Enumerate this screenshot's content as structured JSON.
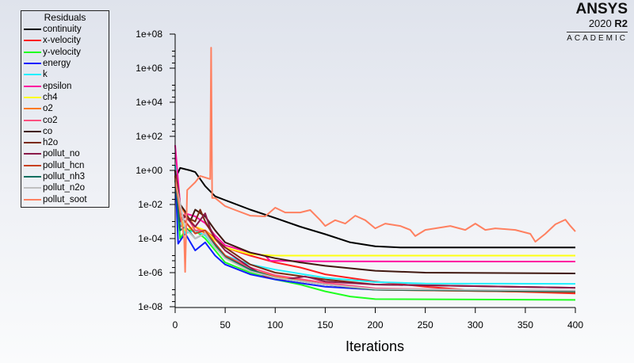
{
  "logo": {
    "brand": "ANSYS",
    "version": "2020",
    "release": "R2",
    "edition": "ACADEMIC"
  },
  "chart_data": {
    "type": "line",
    "title": "",
    "xlabel": "Iterations",
    "ylabel": "",
    "legend_title": "Residuals",
    "legend_position": "top-left",
    "xlim": [
      0,
      400
    ],
    "ylim": [
      1e-08,
      100000000.0
    ],
    "yscale": "log",
    "grid": false,
    "xticks": [
      "0",
      "50",
      "100",
      "150",
      "200",
      "250",
      "300",
      "350",
      "400"
    ],
    "yticks": [
      "1e-08",
      "1e-06",
      "1e-04",
      "1e-02",
      "1e+00",
      "1e+02",
      "1e+04",
      "1e+06",
      "1e+08"
    ],
    "series": [
      {
        "name": "continuity",
        "color": "#000000",
        "points": [
          [
            0,
            0.3
          ],
          [
            5,
            1.4
          ],
          [
            15,
            1.0
          ],
          [
            20,
            0.8
          ],
          [
            30,
            0.12
          ],
          [
            40,
            0.03
          ],
          [
            50,
            0.018
          ],
          [
            75,
            0.005
          ],
          [
            100,
            0.0016
          ],
          [
            125,
            0.0005
          ],
          [
            150,
            0.00018
          ],
          [
            175,
            6e-05
          ],
          [
            200,
            3.5e-05
          ],
          [
            225,
            3e-05
          ],
          [
            400,
            3e-05
          ]
        ]
      },
      {
        "name": "x-velocity",
        "color": "#ff2020",
        "points": [
          [
            0,
            1
          ],
          [
            5,
            0.0005
          ],
          [
            10,
            0.001
          ],
          [
            20,
            0.0002
          ],
          [
            30,
            0.0003
          ],
          [
            40,
            0.0001
          ],
          [
            50,
            3e-05
          ],
          [
            75,
            1e-05
          ],
          [
            100,
            4e-06
          ],
          [
            125,
            2e-06
          ],
          [
            150,
            8e-07
          ],
          [
            200,
            3e-07
          ],
          [
            250,
            1.5e-07
          ],
          [
            300,
            9e-08
          ],
          [
            400,
            6e-08
          ]
        ]
      },
      {
        "name": "y-velocity",
        "color": "#20ff20",
        "points": [
          [
            0,
            0.3
          ],
          [
            5,
            0.0001
          ],
          [
            10,
            0.0003
          ],
          [
            20,
            0.0003
          ],
          [
            30,
            0.0001
          ],
          [
            40,
            2e-05
          ],
          [
            50,
            4e-06
          ],
          [
            75,
            1e-06
          ],
          [
            100,
            4e-07
          ],
          [
            125,
            2e-07
          ],
          [
            150,
            8e-08
          ],
          [
            175,
            4e-08
          ],
          [
            200,
            2.8e-08
          ],
          [
            400,
            2.5e-08
          ]
        ]
      },
      {
        "name": "energy",
        "color": "#1020ff",
        "points": [
          [
            0,
            1
          ],
          [
            3,
            5e-05
          ],
          [
            10,
            0.0002
          ],
          [
            20,
            2e-05
          ],
          [
            30,
            6e-05
          ],
          [
            40,
            1e-05
          ],
          [
            50,
            3e-06
          ],
          [
            75,
            8e-07
          ],
          [
            100,
            4e-07
          ],
          [
            150,
            1.5e-07
          ],
          [
            200,
            1e-07
          ],
          [
            400,
            8e-08
          ]
        ]
      },
      {
        "name": "k",
        "color": "#20f0ff",
        "points": [
          [
            0,
            2
          ],
          [
            5,
            0.001
          ],
          [
            10,
            0.0002
          ],
          [
            20,
            0.0003
          ],
          [
            30,
            0.00015
          ],
          [
            40,
            3e-05
          ],
          [
            50,
            1e-05
          ],
          [
            75,
            3e-06
          ],
          [
            100,
            1.5e-06
          ],
          [
            150,
            5e-07
          ],
          [
            200,
            2.8e-07
          ],
          [
            250,
            2.3e-07
          ],
          [
            400,
            2.2e-07
          ]
        ]
      },
      {
        "name": "epsilon",
        "color": "#ff10a0",
        "points": [
          [
            0,
            30
          ],
          [
            5,
            0.01
          ],
          [
            10,
            0.003
          ],
          [
            20,
            0.002
          ],
          [
            30,
            0.0008
          ],
          [
            40,
            0.00015
          ],
          [
            50,
            4e-05
          ],
          [
            75,
            1.5e-05
          ],
          [
            90,
            1e-05
          ],
          [
            95,
            5e-06
          ],
          [
            150,
            4.6e-06
          ],
          [
            400,
            4.5e-06
          ]
        ]
      },
      {
        "name": "ch4",
        "color": "#ffff10",
        "points": [
          [
            0,
            0.5
          ],
          [
            5,
            0.002
          ],
          [
            10,
            0.0003
          ],
          [
            20,
            0.0005
          ],
          [
            30,
            0.0003
          ],
          [
            40,
            8e-05
          ],
          [
            50,
            3e-05
          ],
          [
            75,
            1.2e-05
          ],
          [
            100,
            1e-05
          ],
          [
            400,
            1e-05
          ]
        ]
      },
      {
        "name": "o2",
        "color": "#ff7a20",
        "points": [
          [
            0,
            0.5
          ],
          [
            5,
            0.01
          ],
          [
            10,
            0.003
          ],
          [
            20,
            0.0005
          ],
          [
            30,
            0.0002
          ],
          [
            40,
            3e-05
          ],
          [
            50,
            8e-06
          ],
          [
            75,
            1.5e-06
          ],
          [
            100,
            6e-07
          ],
          [
            150,
            2e-07
          ],
          [
            200,
            1e-07
          ],
          [
            400,
            7e-08
          ]
        ]
      },
      {
        "name": "co2",
        "color": "#ff5080",
        "points": [
          [
            0,
            1
          ],
          [
            5,
            0.001
          ],
          [
            10,
            0.003
          ],
          [
            20,
            0.0003
          ],
          [
            30,
            0.0003
          ],
          [
            40,
            5e-05
          ],
          [
            50,
            1e-05
          ],
          [
            75,
            2e-06
          ],
          [
            100,
            7e-07
          ],
          [
            150,
            2.5e-07
          ],
          [
            200,
            1.2e-07
          ],
          [
            400,
            8e-08
          ]
        ]
      },
      {
        "name": "co",
        "color": "#401810",
        "points": [
          [
            0,
            1
          ],
          [
            5,
            0.01
          ],
          [
            10,
            0.004
          ],
          [
            15,
            0.001
          ],
          [
            20,
            0.005
          ],
          [
            30,
            0.002
          ],
          [
            40,
            0.0003
          ],
          [
            50,
            6e-05
          ],
          [
            75,
            1.5e-05
          ],
          [
            100,
            7e-06
          ],
          [
            125,
            4e-06
          ],
          [
            150,
            2.5e-06
          ],
          [
            200,
            1.3e-06
          ],
          [
            250,
            1e-06
          ],
          [
            400,
            9e-07
          ]
        ]
      },
      {
        "name": "h2o",
        "color": "#7a2a10",
        "points": [
          [
            0,
            1
          ],
          [
            5,
            0.003
          ],
          [
            10,
            0.002
          ],
          [
            20,
            0.001
          ],
          [
            25,
            0.005
          ],
          [
            30,
            0.001
          ],
          [
            40,
            0.0001
          ],
          [
            50,
            3e-05
          ],
          [
            75,
            3e-06
          ],
          [
            100,
            1e-06
          ],
          [
            150,
            4e-07
          ],
          [
            200,
            2e-07
          ],
          [
            400,
            1.3e-07
          ]
        ]
      },
      {
        "name": "pollut_no",
        "color": "#8b1a4a",
        "points": [
          [
            0,
            0.5
          ],
          [
            5,
            0.001
          ],
          [
            10,
            0.002
          ],
          [
            20,
            0.0005
          ],
          [
            30,
            0.003
          ],
          [
            35,
            0.0004
          ],
          [
            40,
            0.0001
          ],
          [
            50,
            2e-05
          ],
          [
            75,
            2e-06
          ],
          [
            90,
            6e-07
          ],
          [
            110,
            4e-07
          ],
          [
            130,
            6e-07
          ],
          [
            150,
            3e-07
          ],
          [
            200,
            2e-07
          ],
          [
            400,
            1.3e-07
          ]
        ]
      },
      {
        "name": "pollut_hcn",
        "color": "#c84020",
        "points": [
          [
            0,
            0.5
          ],
          [
            5,
            0.002
          ],
          [
            10,
            0.001
          ],
          [
            20,
            0.0002
          ],
          [
            30,
            0.0003
          ],
          [
            40,
            5e-05
          ],
          [
            50,
            1e-05
          ],
          [
            75,
            1.5e-06
          ],
          [
            100,
            5e-07
          ],
          [
            150,
            2e-07
          ],
          [
            200,
            1e-07
          ],
          [
            400,
            7e-08
          ]
        ]
      },
      {
        "name": "pollut_nh3",
        "color": "#107060",
        "points": [
          [
            0,
            0.3
          ],
          [
            5,
            0.0003
          ],
          [
            10,
            0.0005
          ],
          [
            20,
            0.0001
          ],
          [
            30,
            0.0002
          ],
          [
            40,
            4e-05
          ],
          [
            50,
            8e-06
          ],
          [
            75,
            1.5e-06
          ],
          [
            100,
            5e-07
          ],
          [
            150,
            2e-07
          ],
          [
            200,
            1e-07
          ],
          [
            400,
            8e-08
          ]
        ]
      },
      {
        "name": "pollut_n2o",
        "color": "#c0c0c0",
        "points": [
          [
            0,
            0.3
          ],
          [
            10,
            0.0004
          ],
          [
            20,
            0.0001
          ],
          [
            30,
            0.0002
          ],
          [
            40,
            3e-05
          ],
          [
            50,
            7e-06
          ],
          [
            75,
            1.2e-06
          ],
          [
            100,
            5e-07
          ],
          [
            150,
            2e-07
          ],
          [
            200,
            1.1e-07
          ],
          [
            400,
            9e-08
          ]
        ]
      },
      {
        "name": "pollut_soot",
        "color": "#ff8060",
        "points": [
          [
            0,
            0.34
          ],
          [
            9,
            0.0001
          ],
          [
            10,
            1.1e-06
          ],
          [
            12,
            0.07
          ],
          [
            20,
            0.2
          ],
          [
            25,
            0.47
          ],
          [
            35,
            0.31
          ],
          [
            36,
            16000000.0
          ],
          [
            37,
            0.024
          ],
          [
            40,
            0.024
          ],
          [
            50,
            0.008
          ],
          [
            60,
            0.0047
          ],
          [
            75,
            0.0022
          ],
          [
            90,
            0.002
          ],
          [
            100,
            0.0065
          ],
          [
            110,
            0.0034
          ],
          [
            125,
            0.0034
          ],
          [
            135,
            0.0047
          ],
          [
            145,
            0.0012
          ],
          [
            150,
            0.00055
          ],
          [
            160,
            0.0012
          ],
          [
            170,
            0.00076
          ],
          [
            180,
            0.0022
          ],
          [
            190,
            0.0012
          ],
          [
            200,
            0.0004
          ],
          [
            210,
            0.00076
          ],
          [
            225,
            0.00055
          ],
          [
            235,
            0.00032
          ],
          [
            240,
            0.00014
          ],
          [
            250,
            0.00032
          ],
          [
            260,
            0.0004
          ],
          [
            275,
            0.00055
          ],
          [
            290,
            0.00032
          ],
          [
            300,
            0.00076
          ],
          [
            310,
            0.00032
          ],
          [
            320,
            0.0004
          ],
          [
            340,
            0.00032
          ],
          [
            355,
            0.00019
          ],
          [
            360,
            6.5e-05
          ],
          [
            370,
            0.00019
          ],
          [
            380,
            0.00069
          ],
          [
            390,
            0.0013
          ],
          [
            395,
            0.00055
          ],
          [
            400,
            0.00026
          ]
        ]
      }
    ]
  }
}
